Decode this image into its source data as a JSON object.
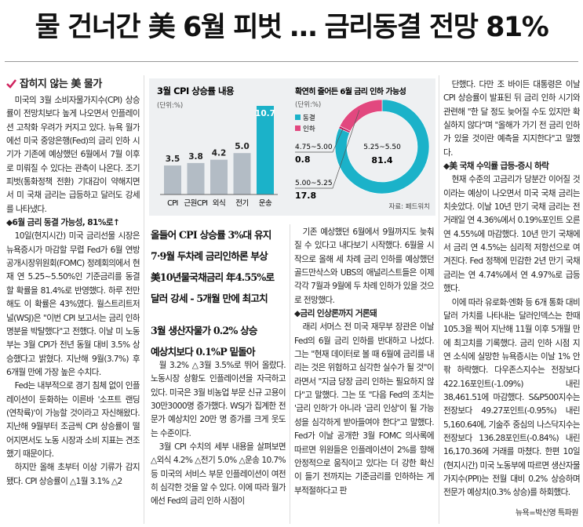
{
  "headline": "물 건너간 美 6월 피벗 … 금리동결 전망 81%",
  "left_column": {
    "subhead": "잡히지 않는 美 물가",
    "paragraphs": [
      {
        "text": "미국의 3월 소비자물가지수(CPI) 상승률이 전망치보다 높게 나오면서 인플레이션 고착화 우려가 커지고 있다. 뉴욕 월가에선 미국 중앙은행(Fed)의 금리 인하 시기가 기존에 예상했던 6월에서 7월 이후로 미뤄질 수 있다는 관측이 나온다. 조기 피벗(통화정책 전환) 기대감이 약해지면서 미 국채 금리는 급등하고 달러도 강세를 나타냈다."
      },
      {
        "heading": "◆6월 금리 동결 가능성, 81%로↑"
      },
      {
        "text": "10일(현지시간) 미국 금리선물 시장은 뉴욕증시가 마감할 무렵 Fed가 6월 연방공개시장위원회(FOMC) 정례회의에서 현재 연 5.25~5.50%인 기준금리를 동결할 확률을 81.4%로 반영했다. 하루 전만 해도 이 확률은 43%였다. 월스트리트저널(WSJ)은 \"이번 CPI 보고서는 금리 인하 명분을 박탈했다\"고 전했다. 이날 미 노동부는 3월 CPI가 전년 동월 대비 3.5% 상승했다고 밝혔다. 지난해 9월(3.7%) 후 6개월 만에 가장 높은 수치다."
      },
      {
        "text": "Fed는 내부적으로 경기 침체 없이 인플레이션이 둔화하는 이른바 '소프트 랜딩(연착륙)'이 가능할 것이라고 자신해왔다. 지난해 9월부터 조금씩 CPI 상승률이 떨어지면서도 노동 시장과 소비 지표는 견조했기 때문이다."
      },
      {
        "text": "하지만 올해 초부터 이상 기류가 감지됐다. CPI 상승률이 △1월 3.1% △2"
      }
    ]
  },
  "sub_headlines": [
    [
      "올들어 CPI 상승률 3%대 유지",
      "7·9월 두차례 금리인하론 부상",
      "美10년물국채금리 年4.55%로",
      "달러 강세 - 5개월 만에 최고치"
    ],
    [
      "3월 생산자물가 0.2% 상승",
      "예상치보다 0.1%P 밑돌아"
    ]
  ],
  "middle_column": {
    "paragraphs": [
      {
        "text": "월 3.2% △3월 3.5%로 뛰어 올랐다. 노동시장 상황도 인플레이션을 자극하고 있다. 미국은 3월 비농업 부문 신규 고용이 30만3000명 증가했다. WSJ가 집계한 전문가 예상치인 20만 명 증가를 크게 웃도는 수준이다."
      },
      {
        "text": "3월 CPI 수치의 세부 내용을 살펴보면 △외식 4.2% △전기 5.0% △운송 10.7% 등 미국의 서비스 부문 인플레이션이 여전히 심각한 것을 알 수 있다. 이에 따라 월가에선 Fed의 금리 인하 시점이"
      }
    ]
  },
  "right_middle_column": {
    "paragraphs": [
      {
        "text": "기존 예상했던 6월에서 9월까지도 늦춰질 수 있다고 내다보기 시작했다. 6월을 시작으로 올해 세 차례 금리 인하를 예상했던 골드만삭스와 UBS의 애널리스트들은 이제 각각 7월과 9월에 두 차례 인하가 있을 것으로 전망했다."
      },
      {
        "heading": "◆금리 인상론까지 거론돼"
      },
      {
        "text": "래리 서머스 전 미국 재무부 장관은 이날 Fed의 6월 금리 인하를 반대하고 나섰다. 그는 \"현재 데이터로 볼 때 6월에 금리를 내리는 것은 위험하고 심각한 실수가 될 것\"이라면서 \"지금 당장 금리 인하는 필요하지 않다\"고 말했다. 그는 또 \"다음 Fed의 조치는 '금리 인하'가 아니라 '금리 인상'이 될 가능성을 심각하게 받아들여야 한다\"고 말했다. Fed가 이날 공개한 3월 FOMC 의사록에 따르면 위원들은 인플레이션이 2%를 향해 안정적으로 움직이고 있다는 더 강한 확신이 들기 전까지는 기준금리를 인하하는 게 부적절하다고 판"
      }
    ]
  },
  "right_column": {
    "paragraphs": [
      {
        "text": "단했다. 다만 조 바이든 대통령은 이날 CPI 상승률이 발표된 뒤 금리 인하 시기와 관련해 \"한 달 정도 늦어질 수도 있지만 확실하지 않다\"며 \"올해가 가기 전 금리 인하가 있을 것이란 예측을 지지한다\"고 말했다."
      },
      {
        "heading": "◆美 국채 수익률 급등-증시 하락"
      },
      {
        "text": "현재 수준의 고금리가 당분간 이어질 것이라는 예상이 나오면서 미국 국채 금리는 치솟았다. 이날 10년 만기 국채 금리는 전 거래일 연 4.36%에서 0.19%포인트 오른 연 4.55%에 마감했다. 10년 만기 국채에서 금리 연 4.5%는 심리적 저항선으로 여겨진다. Fed 정책에 민감한 2년 만기 국채 금리는 연 4.74%에서 연 4.97%로 급등했다."
      },
      {
        "text": "이에 따라 유로화·엔화 등 6개 통화 대비 달러 가치를 나타내는 달러인덱스는 한때 105.3을 찍어 지난해 11월 이후 5개월 만에 최고치를 기록했다. 금리 인하 시점 지연 소식에 실망한 뉴욕증시는 이날 1% 안팎 하락했다. 다우존스지수는 전장보다 422.16포인트(-1.09%) 내린 38,461.51에 마감했다. S&P500지수는 전장보다 49.27포인트(-0.95%) 내린 5,160.64에, 기술주 중심의 나스닥지수는 전장보다 136.28포인트(-0.84%) 내린 16,170.36에 거래를 마쳤다. 한편 10일(현지시간) 미국 노동부에 따르면 생산자물가지수(PPI)는 전월 대비 0.2% 상승하며 전문가 예상치(0.3% 상승)를 하회했다."
      }
    ],
    "byline": "뉴욕=박신영 특파원"
  },
  "bar_chart": {
    "type": "bar",
    "title": "3월 CPI 상승률 내용",
    "unit": "(단위:%)",
    "categories": [
      "CPI",
      "근원CPI",
      "외식",
      "전기",
      "운송"
    ],
    "values": [
      3.5,
      3.8,
      4.2,
      5,
      10.7
    ],
    "value_labels": [
      "3.5",
      "3.8",
      "4.2",
      "5.0",
      "10.7"
    ],
    "colors": [
      "#b3bcc5",
      "#b3bcc5",
      "#b3bcc5",
      "#b3bcc5",
      "#1bb2c9"
    ]
  },
  "donut_chart": {
    "type": "pie",
    "title": "확연히 줄어든 6월 금리 인하 가능성",
    "unit": "(단위:%)",
    "legend": [
      {
        "name": "동결",
        "color": "#1bb2c9"
      },
      {
        "name": "인하",
        "color": "#e2487f"
      }
    ],
    "categories": [
      "5.25~5.50",
      "4.75~5.00",
      "5.00~5.25"
    ],
    "values": [
      81.4,
      0.8,
      17.8
    ],
    "colors": [
      "#1bb2c9",
      "#c2185b",
      "#e2487f"
    ],
    "source": "자료: 페드워치"
  }
}
